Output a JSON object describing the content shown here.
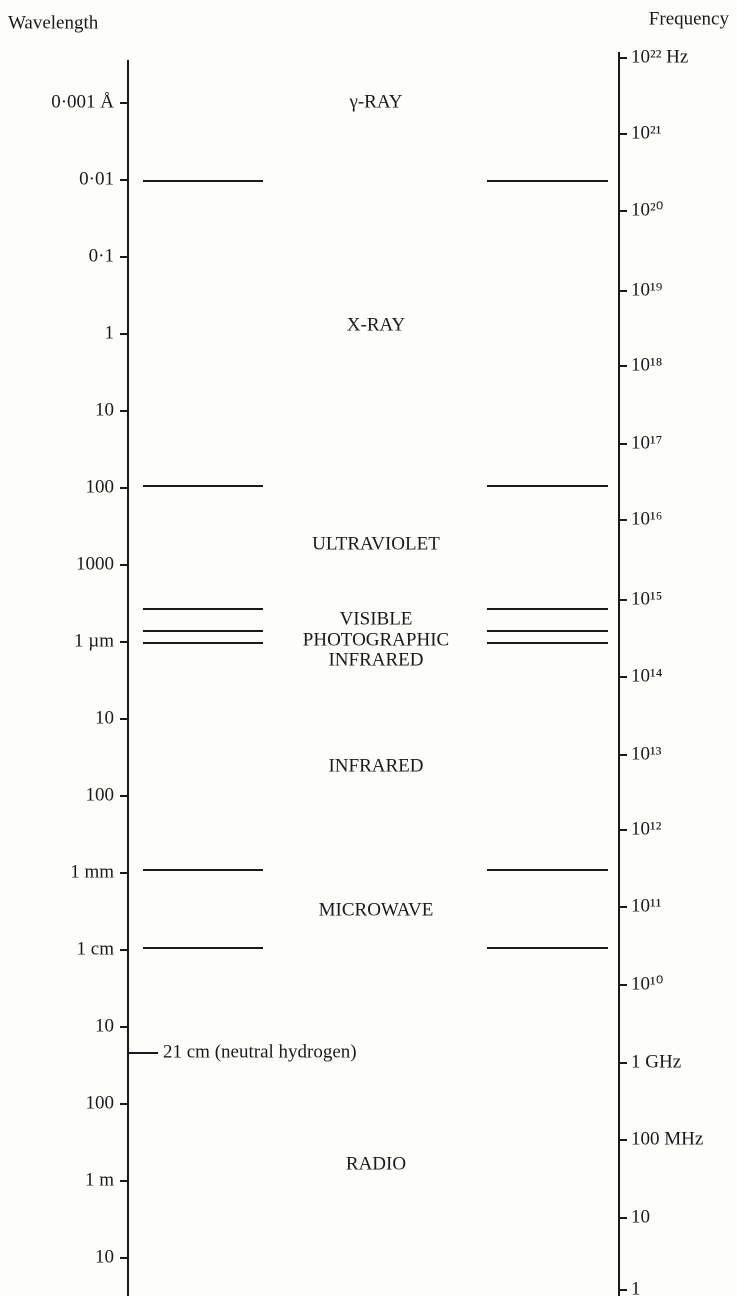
{
  "header": {
    "left": "Wavelength",
    "right": "Frequency"
  },
  "wavelength_ticks": [
    "0·001 Å",
    "0·01",
    "0·1",
    "1",
    "10",
    "100",
    "1000",
    "1 µm",
    "10",
    "100",
    "1 mm",
    "1 cm",
    "10",
    "100",
    "1 m",
    "10"
  ],
  "frequency_ticks": [
    "10²² Hz",
    "10²¹",
    "10²⁰",
    "10¹⁹",
    "10¹⁸",
    "10¹⁷",
    "10¹⁶",
    "10¹⁵",
    "10¹⁴",
    "10¹³",
    "10¹²",
    "10¹¹",
    "10¹⁰",
    "1 GHz",
    "100 MHz",
    "10",
    "1"
  ],
  "regions": [
    "γ-RAY",
    "X-RAY",
    "ULTRAVIOLET",
    "VISIBLE",
    "PHOTOGRAPHIC",
    "INFRARED",
    "INFRARED",
    "MICROWAVE",
    "RADIO"
  ],
  "annotation": "21 cm (neutral hydrogen)"
}
